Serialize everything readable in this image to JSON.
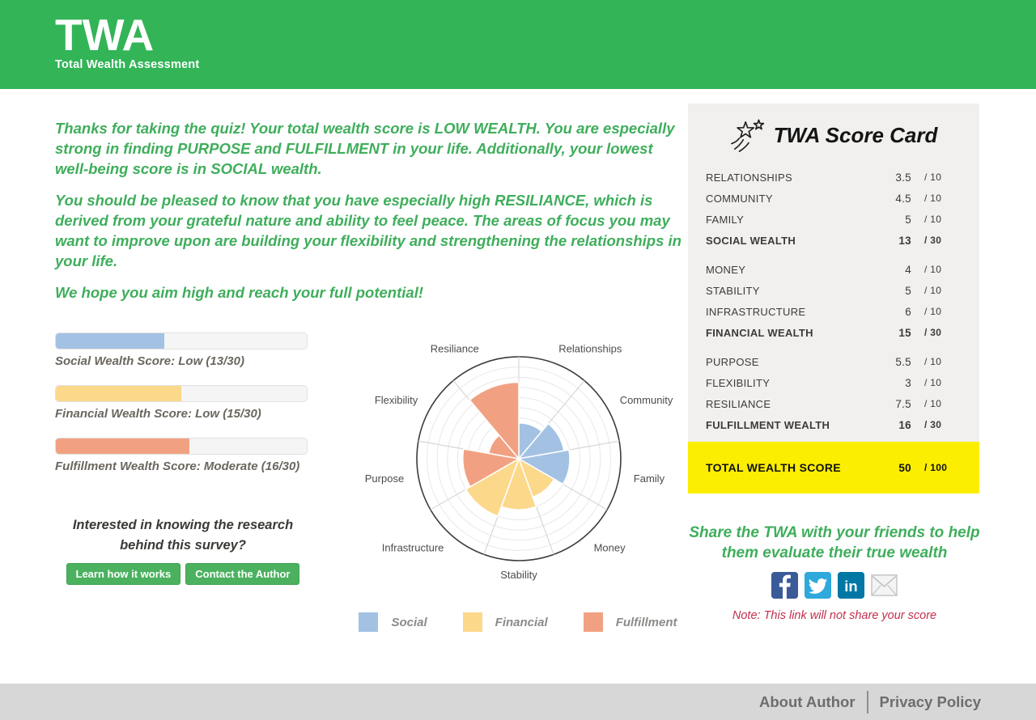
{
  "header": {
    "logo_title": "TWA",
    "logo_subtitle": "Total Wealth Assessment",
    "background_color": "#32b457"
  },
  "results": {
    "text_color": "#3fae5c",
    "paragraphs": [
      "Thanks for taking the quiz! Your total wealth score is LOW WEALTH. You are especially strong in finding PURPOSE and FULFILLMENT in your life. Additionally, your lowest well-being score is in SOCIAL wealth.",
      "You should be pleased to know that you have especially high RESILIANCE, which is derived from your grateful nature and ability to feel peace. The areas of focus you may want to improve upon are building your flexibility and strengthening the relationships in your life.",
      "We hope you aim high and reach your full potential!"
    ]
  },
  "score_bars": [
    {
      "label": "Social Wealth Score: Low (13/30)",
      "score": 13,
      "max": 30,
      "color": "#a3c2e3"
    },
    {
      "label": "Financial Wealth Score: Low (15/30)",
      "score": 15,
      "max": 30,
      "color": "#fcd88b"
    },
    {
      "label": "Fulfillment Wealth Score: Moderate (16/30)",
      "score": 16,
      "max": 30,
      "color": "#f1a182"
    }
  ],
  "research": {
    "heading": "Interested in knowing the research behind this survey?",
    "buttons": [
      {
        "label": "Learn how it works"
      },
      {
        "label": "Contact the Author"
      }
    ]
  },
  "chart_data": {
    "type": "polar_area",
    "title": "",
    "max": 10,
    "rings": 10,
    "start_angle_deg": 90,
    "direction": "clockwise",
    "categories": [
      {
        "label": "Relationships",
        "value": 3.5,
        "group": "Social"
      },
      {
        "label": "Community",
        "value": 4.5,
        "group": "Social"
      },
      {
        "label": "Family",
        "value": 5,
        "group": "Social"
      },
      {
        "label": "Money",
        "value": 4,
        "group": "Financial"
      },
      {
        "label": "Stability",
        "value": 5,
        "group": "Financial"
      },
      {
        "label": "Infrastructure",
        "value": 6,
        "group": "Financial"
      },
      {
        "label": "Purpose",
        "value": 5.5,
        "group": "Fulfillment"
      },
      {
        "label": "Flexibility",
        "value": 3,
        "group": "Fulfillment"
      },
      {
        "label": "Resiliance",
        "value": 7.5,
        "group": "Fulfillment"
      }
    ],
    "colors": {
      "Social": "#a3c2e3",
      "Financial": "#fcd88b",
      "Fulfillment": "#f1a182"
    },
    "legend": [
      {
        "label": "Social",
        "color": "#a3c2e3"
      },
      {
        "label": "Financial",
        "color": "#fcd88b"
      },
      {
        "label": "Fulfillment",
        "color": "#f1a182"
      }
    ],
    "legend_position": "bottom",
    "grid": true
  },
  "scorecard": {
    "title": "TWA Score Card",
    "icon": "shooting-star-icon",
    "background_color": "#f1f0ee",
    "highlight_color": "#fcee00",
    "sections": [
      [
        {
          "label": "RELATIONSHIPS",
          "value": "3.5",
          "max": "/ 10",
          "bold": false
        },
        {
          "label": "COMMUNITY",
          "value": "4.5",
          "max": "/ 10",
          "bold": false
        },
        {
          "label": "FAMILY",
          "value": "5",
          "max": "/ 10",
          "bold": false
        },
        {
          "label": "SOCIAL WEALTH",
          "value": "13",
          "max": "/ 30",
          "bold": true
        }
      ],
      [
        {
          "label": "MONEY",
          "value": "4",
          "max": "/ 10",
          "bold": false
        },
        {
          "label": "STABILITY",
          "value": "5",
          "max": "/ 10",
          "bold": false
        },
        {
          "label": "INFRASTRUCTURE",
          "value": "6",
          "max": "/ 10",
          "bold": false
        },
        {
          "label": "FINANCIAL WEALTH",
          "value": "15",
          "max": "/ 30",
          "bold": true
        }
      ],
      [
        {
          "label": "PURPOSE",
          "value": "5.5",
          "max": "/ 10",
          "bold": false
        },
        {
          "label": "FLEXIBILITY",
          "value": "3",
          "max": "/ 10",
          "bold": false
        },
        {
          "label": "RESILIANCE",
          "value": "7.5",
          "max": "/ 10",
          "bold": false
        },
        {
          "label": "FULFILLMENT WEALTH",
          "value": "16",
          "max": "/ 30",
          "bold": true
        }
      ]
    ],
    "total": {
      "label": "TOTAL WEALTH SCORE",
      "value": "50",
      "max": "/ 100"
    }
  },
  "share": {
    "heading": "Share the TWA with your friends to help them evaluate their true wealth",
    "icons": [
      {
        "name": "facebook-icon",
        "color": "#3a5a98"
      },
      {
        "name": "twitter-icon",
        "color": "#2fa8dc"
      },
      {
        "name": "linkedin-icon",
        "color": "#0077a5"
      },
      {
        "name": "email-icon",
        "color": "#f4f4f4"
      }
    ],
    "note": "Note: This link will not share your score"
  },
  "footer": {
    "links": [
      "About Author",
      "Privacy Policy"
    ]
  }
}
